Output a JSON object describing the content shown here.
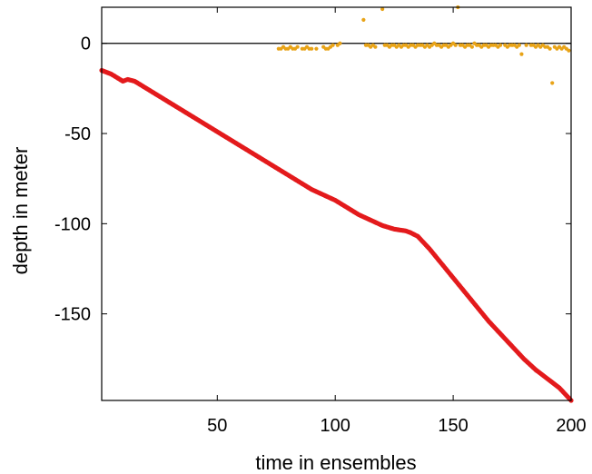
{
  "chart_data": {
    "type": "scatter",
    "xlabel": "time in ensembles",
    "ylabel": "depth in meter",
    "xlim": [
      1,
      200
    ],
    "ylim": [
      -198,
      20
    ],
    "xticks": [
      50,
      100,
      150,
      200
    ],
    "yticks": [
      0,
      -50,
      -100,
      -150
    ],
    "xtick_labels": [
      "50",
      "100",
      "150",
      "200"
    ],
    "ytick_labels": [
      "0",
      "-50",
      "-100",
      "-150"
    ],
    "grid": false,
    "reference_line": {
      "y": 0,
      "color": "#000000"
    },
    "colors": {
      "depth_track": "#e31a1c",
      "scatter_points": "#e8a317",
      "axes": "#000000"
    },
    "series": [
      {
        "marker": "dot",
        "color": "#e31a1c",
        "segments": [
          {
            "x": [
              1,
              5,
              10,
              12,
              15,
              20,
              25,
              30,
              35,
              40,
              45,
              50,
              55,
              60,
              65,
              70,
              75,
              80,
              85,
              90,
              95,
              100,
              105,
              110,
              115,
              120,
              125,
              130,
              132,
              135,
              140,
              145,
              150,
              155,
              160,
              165,
              170,
              175,
              180,
              185,
              190,
              195,
              200
            ],
            "y": [
              -15,
              -17,
              -21,
              -20,
              -21,
              -25,
              -29,
              -33,
              -37,
              -41,
              -45,
              -49,
              -53,
              -57,
              -61,
              -65,
              -69,
              -73,
              -77,
              -81,
              -84,
              -87,
              -91,
              -95,
              -98,
              -101,
              -103,
              -104,
              -105,
              -107,
              -114,
              -122,
              -130,
              -138,
              -146,
              -154,
              -161,
              -168,
              -175,
              -181,
              -186,
              -191,
              -198
            ]
          }
        ]
      },
      {
        "marker": "dot",
        "color": "#e8a317",
        "x": [
          76,
          77,
          78,
          79,
          80,
          81,
          82,
          83,
          84,
          86,
          87,
          88,
          89,
          90,
          92,
          95,
          96,
          97,
          98,
          99,
          101,
          102,
          112,
          113,
          114,
          115,
          116,
          117,
          120,
          121,
          122,
          123,
          124,
          125,
          126,
          127,
          128,
          129,
          130,
          131,
          132,
          133,
          134,
          135,
          136,
          137,
          138,
          139,
          140,
          141,
          142,
          143,
          144,
          145,
          146,
          147,
          148,
          149,
          150,
          151,
          152,
          153,
          154,
          155,
          156,
          157,
          158,
          159,
          160,
          161,
          162,
          163,
          164,
          165,
          166,
          167,
          168,
          169,
          170,
          172,
          173,
          174,
          175,
          176,
          177,
          178,
          179,
          181,
          183,
          184,
          185,
          186,
          187,
          188,
          189,
          190,
          191,
          192,
          193,
          194,
          195,
          196,
          197,
          198,
          199
        ],
        "y": [
          -3,
          -3,
          -2,
          -3,
          -3,
          -2,
          -3,
          -3,
          -2,
          -3,
          -3,
          -2,
          -3,
          -3,
          -3,
          -2,
          -3,
          -3,
          -2,
          -1,
          -1,
          0,
          13,
          -1,
          -1,
          -2,
          -1,
          -2,
          19,
          -1,
          -1,
          -2,
          -1,
          -1,
          -2,
          -1,
          -2,
          -1,
          -1,
          -2,
          -1,
          -1,
          -2,
          -1,
          -1,
          -1,
          -2,
          -1,
          -2,
          -1,
          0,
          -1,
          -1,
          -2,
          -1,
          -1,
          -2,
          -1,
          0,
          -1,
          20,
          -1,
          -1,
          -2,
          -1,
          -1,
          -2,
          0,
          -1,
          -1,
          -2,
          -1,
          -1,
          -2,
          -1,
          -1,
          -1,
          -2,
          -1,
          -1,
          -2,
          -1,
          -1,
          -1,
          -2,
          -1,
          -6,
          -1,
          -1,
          -1,
          -2,
          -1,
          -2,
          -1,
          -2,
          -2,
          -3,
          -22,
          -2,
          -3,
          -2,
          -3,
          -2,
          -3,
          -4
        ]
      }
    ]
  }
}
